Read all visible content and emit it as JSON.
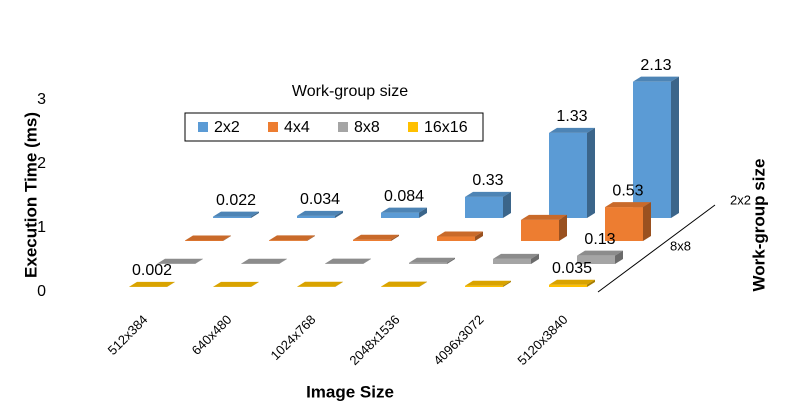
{
  "chart_data": {
    "type": "bar3d",
    "x_label": "Image Size",
    "y_label": "Execution Time (ms)",
    "z_label": "Work-group size",
    "legend_title": "Work-group size",
    "categories": [
      "512x384",
      "640x480",
      "1024x768",
      "2048x1536",
      "4096x3072",
      "5120x3840"
    ],
    "z_ticks": [
      "2x2",
      "8x8"
    ],
    "ylim": [
      0,
      3.3
    ],
    "yticks": [
      0,
      1,
      2,
      3
    ],
    "series": [
      {
        "name": "2x2",
        "color": "#5b9bd5",
        "values": [
          0.022,
          0.034,
          0.084,
          0.33,
          1.33,
          2.13
        ],
        "value_labels": [
          "0.022",
          "0.034",
          "0.084",
          "0.33",
          "1.33",
          "2.13"
        ]
      },
      {
        "name": "4x4",
        "color": "#ed7d31",
        "values": [
          0.008,
          0.01,
          0.02,
          0.07,
          0.33,
          0.53
        ],
        "value_labels": [
          null,
          null,
          null,
          null,
          null,
          "0.53"
        ]
      },
      {
        "name": "8x8",
        "color": "#a5a5a5",
        "values": [
          0.003,
          0.004,
          0.006,
          0.02,
          0.08,
          0.13
        ],
        "value_labels": [
          null,
          null,
          null,
          null,
          null,
          "0.13"
        ]
      },
      {
        "name": "16x16",
        "color": "#ffc000",
        "values": [
          0.002,
          0.002,
          0.003,
          0.006,
          0.02,
          0.035
        ],
        "value_labels": [
          "0.002",
          null,
          null,
          null,
          null,
          "0.035"
        ]
      }
    ]
  }
}
